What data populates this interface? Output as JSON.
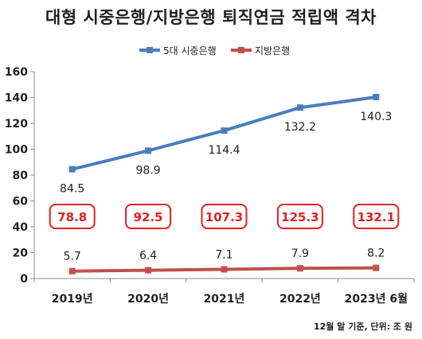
{
  "chart_data": {
    "type": "line",
    "title": "대형 시중은행/지방은행 퇴직연금 적립액 격차",
    "categories": [
      "2019년",
      "2020년",
      "2021년",
      "2022년",
      "2023년 6월"
    ],
    "series": [
      {
        "name": "5대 시중은행",
        "values": [
          84.5,
          98.9,
          114.4,
          132.2,
          140.3
        ],
        "color": "#4a7ebb"
      },
      {
        "name": "지방은행",
        "values": [
          5.7,
          6.4,
          7.1,
          7.9,
          8.2
        ],
        "color": "#c0504d"
      }
    ],
    "gap_values": [
      "78.8",
      "92.5",
      "107.3",
      "125.3",
      "132.1"
    ],
    "gap_color": "#e02020",
    "yticks": [
      "0",
      "20",
      "40",
      "60",
      "80",
      "100",
      "120",
      "140",
      "160"
    ],
    "ylim": [
      0,
      160
    ],
    "legend": "top-center",
    "grid": false,
    "note": "12월 말 기준, 단위: 조 원"
  }
}
